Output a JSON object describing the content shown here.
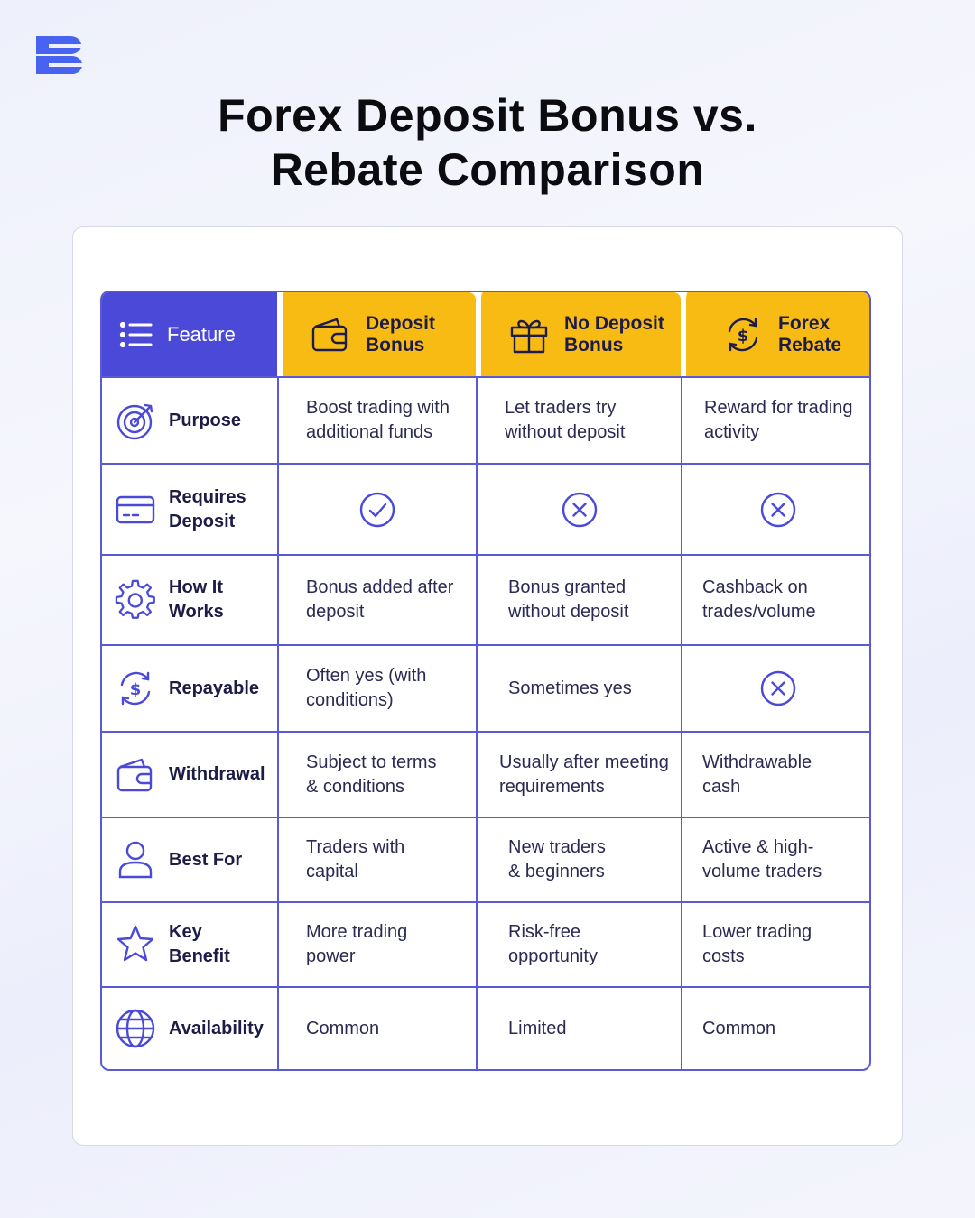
{
  "brand": {
    "logo_icon": "brand-logo-icon",
    "accent": "#4b4ad8",
    "highlight": "#f8bb14"
  },
  "title_line1": "Forex Deposit Bonus vs.",
  "title_line2": "Rebate Comparison",
  "table": {
    "headers": [
      {
        "label": "Feature",
        "icon": "list-icon"
      },
      {
        "label_line1": "Deposit",
        "label_line2": "Bonus",
        "icon": "wallet-icon"
      },
      {
        "label_line1": "No Deposit",
        "label_line2": "Bonus",
        "icon": "gift-icon"
      },
      {
        "label_line1": "Forex",
        "label_line2": "Rebate",
        "icon": "dollar-cycle-icon"
      }
    ],
    "rows": [
      {
        "feature_line1": "Purpose",
        "icon": "target-icon",
        "cells": [
          {
            "line1": "Boost trading with",
            "line2": "additional funds"
          },
          {
            "line1": "Let traders try",
            "line2": "without deposit"
          },
          {
            "line1": "Reward for trading",
            "line2": "activity"
          }
        ]
      },
      {
        "feature_line1": "Requires",
        "feature_line2": "Deposit",
        "icon": "credit-card-icon",
        "marks": [
          "check",
          "cross",
          "cross"
        ]
      },
      {
        "feature_line1": "How It",
        "feature_line2": "Works",
        "icon": "gear-icon",
        "cells": [
          {
            "line1": "Bonus added after",
            "line2": "deposit"
          },
          {
            "line1": "Bonus granted",
            "line2": "without deposit"
          },
          {
            "line1": "Cashback on",
            "line2": "trades/volume"
          }
        ]
      },
      {
        "feature_line1": "Repayable",
        "icon": "dollar-cycle-icon",
        "cells": [
          {
            "line1": "Often yes (with",
            "line2": "conditions)"
          },
          {
            "line1": "Sometimes yes"
          }
        ],
        "marks": [
          "cross"
        ]
      },
      {
        "feature_line1": "Withdrawal",
        "icon": "wallet-icon",
        "cells": [
          {
            "line1": "Subject to terms",
            "line2": "& conditions"
          },
          {
            "line1": "Usually after meeting",
            "line2": "requirements"
          },
          {
            "line1": "Withdrawable",
            "line2": "cash"
          }
        ]
      },
      {
        "feature_line1": "Best For",
        "icon": "user-icon",
        "cells": [
          {
            "line1": "Traders with",
            "line2": "capital"
          },
          {
            "line1": "New traders",
            "line2": "& beginners"
          },
          {
            "line1": "Active & high-",
            "line2": "volume traders"
          }
        ]
      },
      {
        "feature_line1": "Key Benefit",
        "icon": "star-icon",
        "cells": [
          {
            "line1": "More trading",
            "line2": "power"
          },
          {
            "line1": "Risk-free",
            "line2": "opportunity"
          },
          {
            "line1": "Lower trading",
            "line2": "costs"
          }
        ]
      },
      {
        "feature_line1": "Availability",
        "icon": "globe-icon",
        "cells": [
          {
            "line1": "Common"
          },
          {
            "line1": "Limited"
          },
          {
            "line1": "Common"
          }
        ]
      }
    ]
  }
}
